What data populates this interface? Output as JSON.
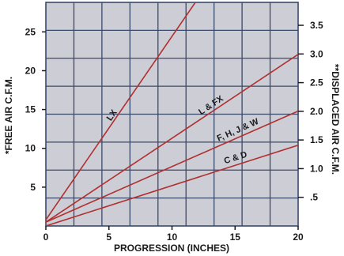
{
  "chart_data": {
    "type": "line",
    "title": "",
    "xlabel": "PROGRESSION (INCHES)",
    "ylabel_left": "*FREE AIR C.F.M.",
    "ylabel_right": "**DISPLACED AIR C.F.M.",
    "xlim": [
      0,
      20
    ],
    "ylim_left": [
      0,
      28.8
    ],
    "ylim_right": [
      0,
      3.9
    ],
    "x_ticks": [
      {
        "value": 0,
        "label": "0"
      },
      {
        "value": 5,
        "label": "5"
      },
      {
        "value": 10,
        "label": "10"
      },
      {
        "value": 15,
        "label": "15"
      },
      {
        "value": 20,
        "label": "20"
      }
    ],
    "y_left_ticks": [
      {
        "value": 5,
        "label": "5"
      },
      {
        "value": 10,
        "label": "10"
      },
      {
        "value": 15,
        "label": "15"
      },
      {
        "value": 20,
        "label": "20"
      },
      {
        "value": 25,
        "label": "25"
      }
    ],
    "y_right_ticks": [
      {
        "value": 0.5,
        "label": ".5"
      },
      {
        "value": 1.0,
        "label": "1.0"
      },
      {
        "value": 1.5,
        "label": "1.5"
      },
      {
        "value": 2.0,
        "label": "2.0"
      },
      {
        "value": 2.5,
        "label": "2.5"
      },
      {
        "value": 3.0,
        "label": "3.0"
      },
      {
        "value": 3.5,
        "label": "3.5"
      }
    ],
    "grid": true,
    "background_color": "#cdcdd6",
    "grid_color": "#3a4a6a",
    "line_color": "#b03030",
    "series": [
      {
        "name": "LX",
        "x": [
          0,
          12.7
        ],
        "y": [
          0.8,
          30.8
        ]
      },
      {
        "name": "L & FX",
        "x": [
          0,
          20
        ],
        "y": [
          0.5,
          22.1
        ]
      },
      {
        "name": "F, H, J & W",
        "x": [
          0,
          20
        ],
        "y": [
          0.5,
          14.8
        ]
      },
      {
        "name": "C & D",
        "x": [
          0,
          20
        ],
        "y": [
          0,
          10.4
        ]
      }
    ]
  }
}
